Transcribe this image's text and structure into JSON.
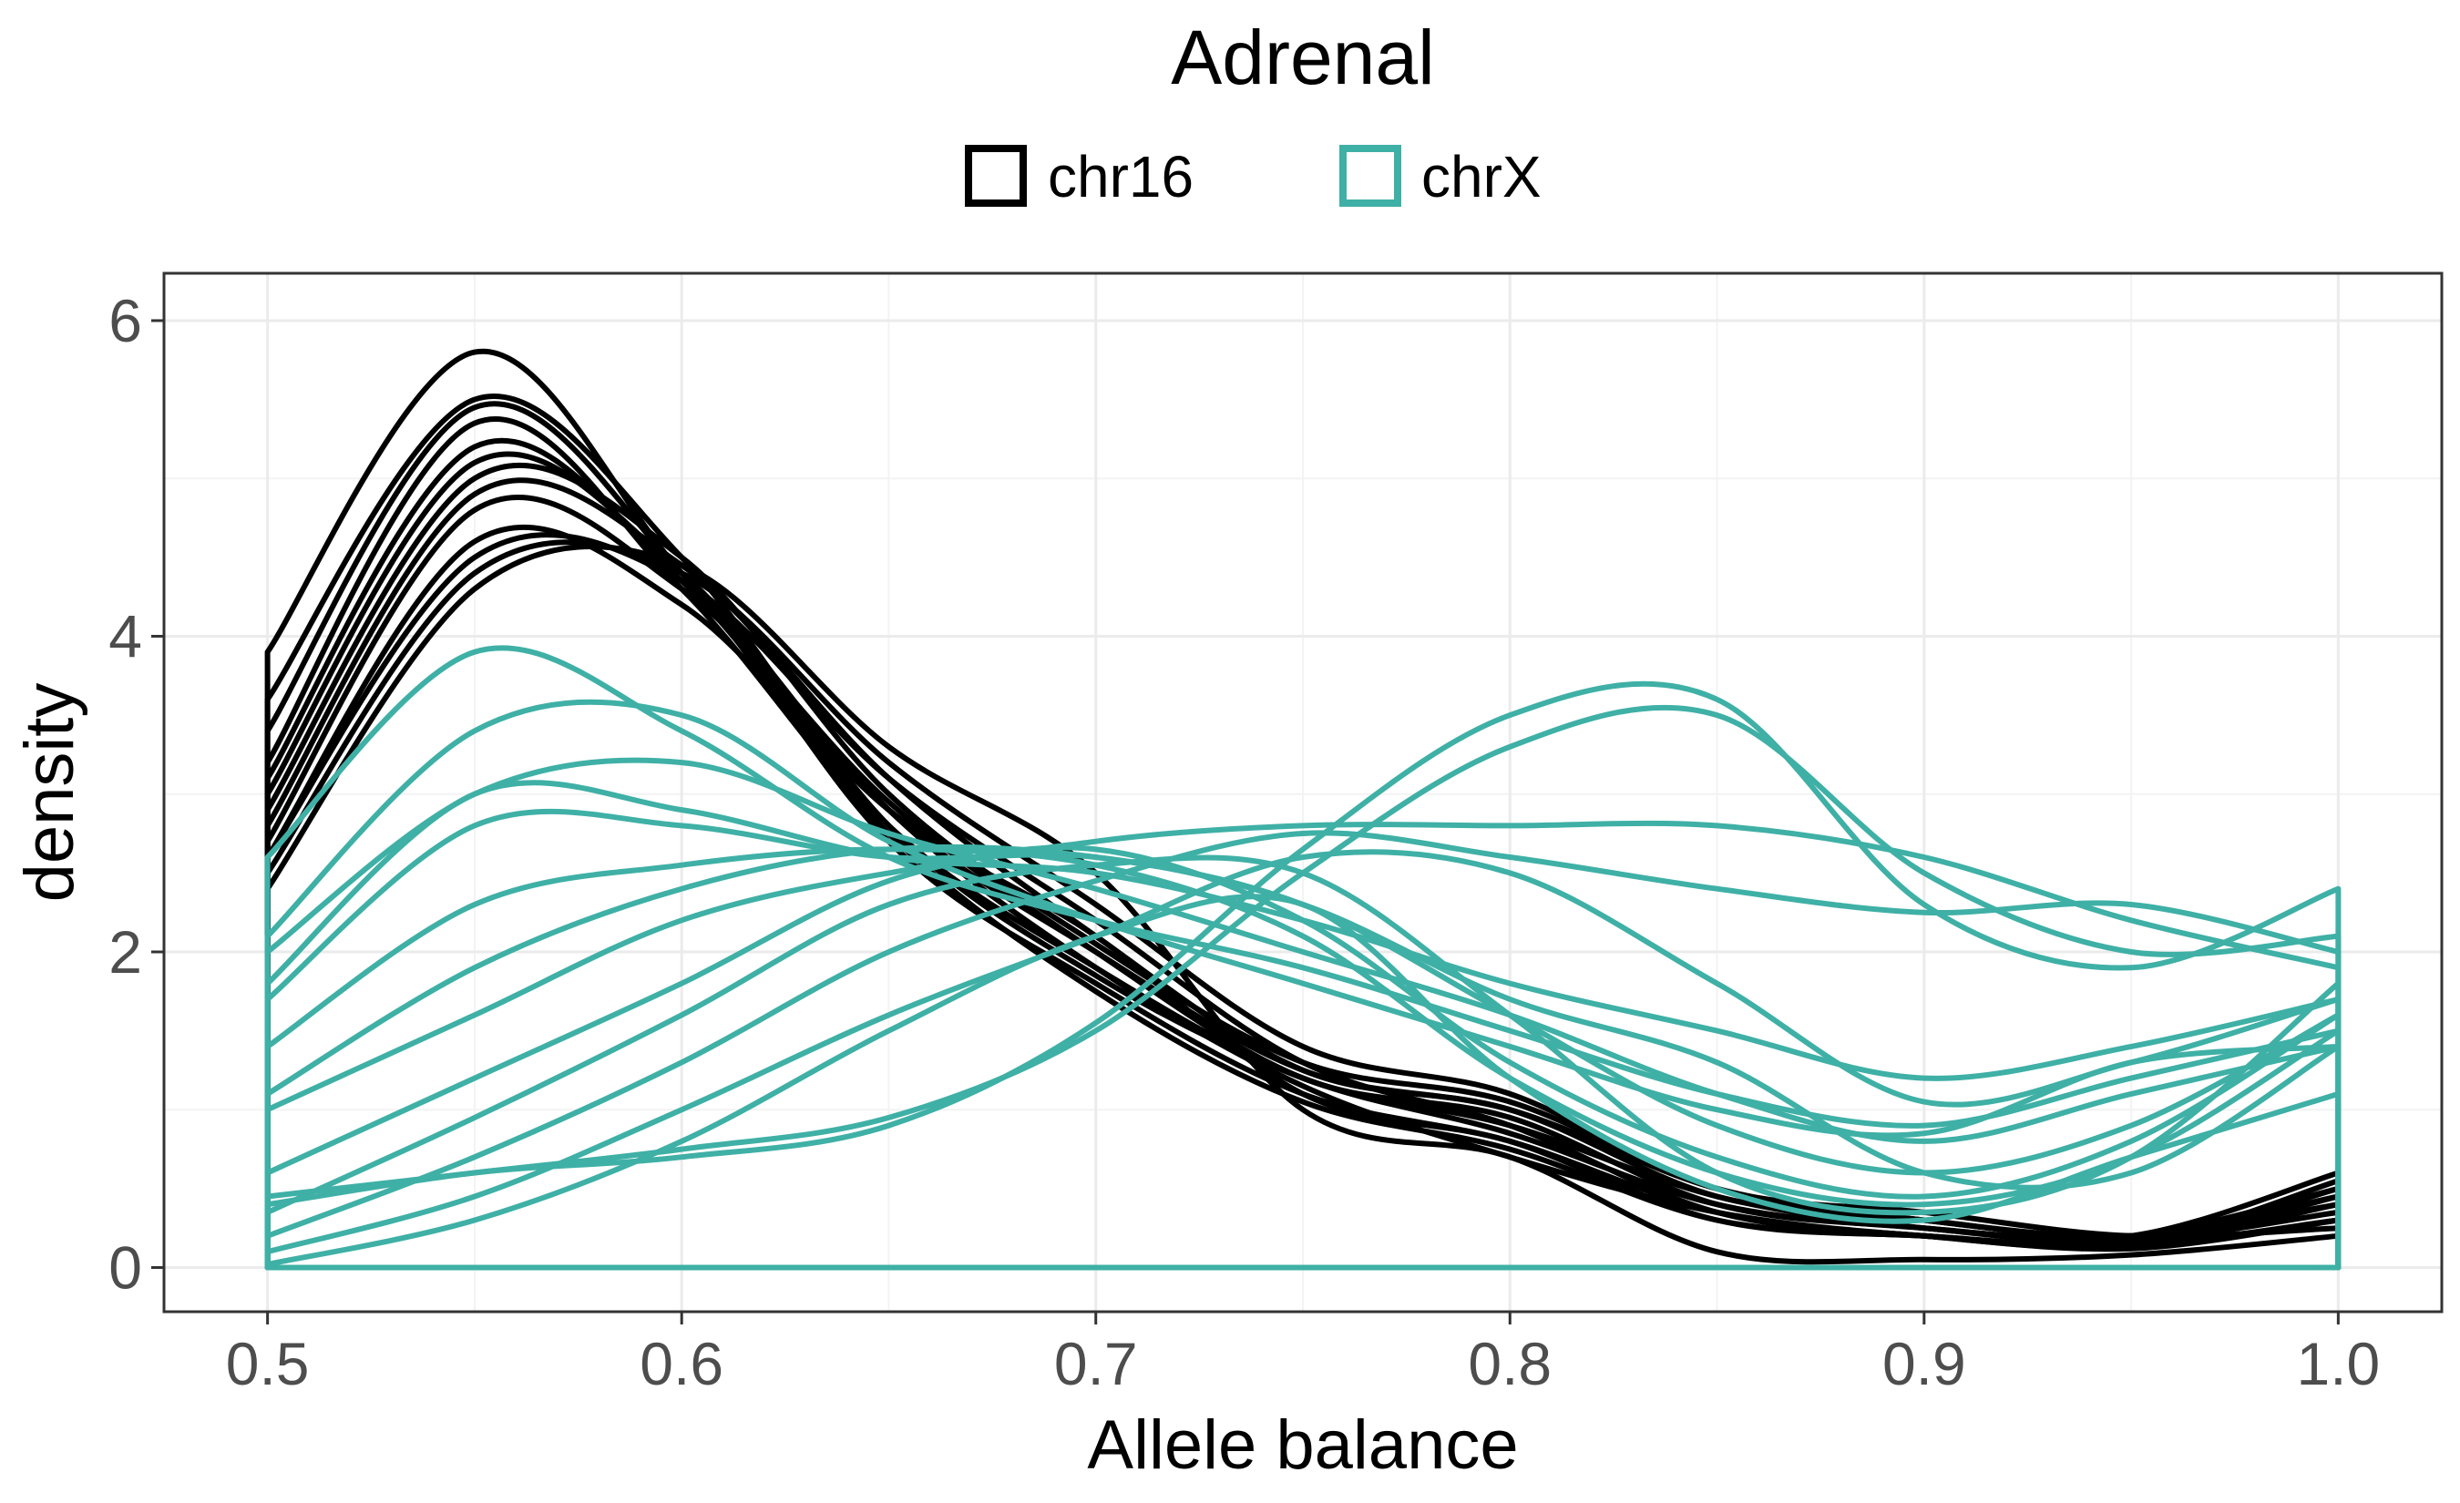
{
  "chart_data": {
    "type": "line",
    "title": "Adrenal",
    "xlabel": "Allele balance",
    "ylabel": "density",
    "xlim": [
      0.475,
      1.025
    ],
    "ylim": [
      -0.28,
      6.3
    ],
    "xticks": [
      0.5,
      0.6,
      0.7,
      0.8,
      0.9,
      1.0
    ],
    "xtick_labels": [
      "0.5",
      "0.6",
      "0.7",
      "0.8",
      "0.9",
      "1.0"
    ],
    "yticks": [
      0,
      2,
      4,
      6
    ],
    "ytick_labels": [
      "0",
      "2",
      "4",
      "6"
    ],
    "grid": true,
    "legend_position": "top",
    "legend": [
      {
        "label": "chr16",
        "color": "#000000"
      },
      {
        "label": "chrX",
        "color": "#3fb0a6"
      }
    ],
    "x": [
      0.5,
      0.55,
      0.6,
      0.65,
      0.7,
      0.75,
      0.8,
      0.85,
      0.9,
      0.95,
      1.0
    ],
    "series": [
      {
        "group": "chr16",
        "values": [
          3.9,
          5.8,
          4.4,
          2.9,
          1.9,
          1.15,
          0.7,
          0.35,
          0.2,
          0.15,
          0.55
        ]
      },
      {
        "group": "chr16",
        "values": [
          3.6,
          5.5,
          4.5,
          2.8,
          1.85,
          1.2,
          0.85,
          0.4,
          0.25,
          0.2,
          0.6
        ]
      },
      {
        "group": "chr16",
        "values": [
          3.4,
          5.45,
          4.4,
          2.7,
          1.8,
          1.1,
          0.8,
          0.35,
          0.2,
          0.15,
          0.5
        ]
      },
      {
        "group": "chr16",
        "values": [
          3.2,
          5.35,
          4.3,
          2.75,
          1.75,
          1.05,
          0.75,
          0.3,
          0.2,
          0.15,
          0.45
        ]
      },
      {
        "group": "chr16",
        "values": [
          3.1,
          5.2,
          4.35,
          2.8,
          1.9,
          1.2,
          0.9,
          0.45,
          0.25,
          0.2,
          0.5
        ]
      },
      {
        "group": "chr16",
        "values": [
          3.0,
          5.1,
          4.4,
          2.9,
          2.0,
          1.25,
          1.0,
          0.5,
          0.3,
          0.2,
          0.45
        ]
      },
      {
        "group": "chr16",
        "values": [
          2.9,
          5.0,
          4.5,
          3.0,
          2.05,
          1.3,
          1.05,
          0.5,
          0.3,
          0.2,
          0.4
        ]
      },
      {
        "group": "chr16",
        "values": [
          2.8,
          4.9,
          4.45,
          3.1,
          2.1,
          1.25,
          1.0,
          0.45,
          0.3,
          0.18,
          0.35
        ]
      },
      {
        "group": "chr16",
        "values": [
          2.7,
          4.8,
          4.3,
          2.95,
          2.0,
          1.2,
          0.95,
          0.4,
          0.25,
          0.15,
          0.3
        ]
      },
      {
        "group": "chr16",
        "values": [
          2.6,
          4.6,
          4.2,
          2.9,
          2.1,
          1.1,
          0.8,
          0.3,
          0.2,
          0.15,
          0.4
        ]
      },
      {
        "group": "chr16",
        "values": [
          2.6,
          4.5,
          4.35,
          3.1,
          2.2,
          1.3,
          0.9,
          0.35,
          0.2,
          0.12,
          0.3
        ]
      },
      {
        "group": "chr16",
        "values": [
          2.5,
          4.4,
          4.4,
          3.2,
          2.3,
          1.4,
          1.1,
          0.5,
          0.35,
          0.2,
          0.25
        ]
      },
      {
        "group": "chr16",
        "values": [
          2.4,
          4.3,
          4.45,
          3.3,
          2.5,
          1.0,
          0.7,
          0.1,
          0.05,
          0.08,
          0.2
        ]
      },
      {
        "group": "chrX",
        "values": [
          2.6,
          3.9,
          3.4,
          2.6,
          2.2,
          1.9,
          1.5,
          1.1,
          0.9,
          1.2,
          1.5
        ]
      },
      {
        "group": "chrX",
        "values": [
          2.1,
          3.4,
          3.5,
          2.7,
          2.2,
          1.8,
          1.4,
          1.0,
          0.85,
          1.3,
          1.4
        ]
      },
      {
        "group": "chrX",
        "values": [
          2.0,
          3.0,
          3.2,
          2.75,
          2.4,
          2.0,
          1.6,
          1.1,
          0.8,
          1.1,
          1.4
        ]
      },
      {
        "group": "chrX",
        "values": [
          1.8,
          3.0,
          2.9,
          2.6,
          2.5,
          2.2,
          1.8,
          1.5,
          1.2,
          1.4,
          1.7
        ]
      },
      {
        "group": "chrX",
        "values": [
          1.7,
          2.8,
          2.8,
          2.6,
          2.6,
          2.3,
          1.7,
          1.3,
          0.6,
          0.6,
          1.4
        ]
      },
      {
        "group": "chrX",
        "values": [
          1.4,
          2.3,
          2.55,
          2.65,
          2.55,
          2.1,
          1.2,
          0.6,
          0.4,
          0.7,
          1.5
        ]
      },
      {
        "group": "chrX",
        "values": [
          1.1,
          1.9,
          2.4,
          2.65,
          2.6,
          2.3,
          1.6,
          0.9,
          0.6,
          0.9,
          1.6
        ]
      },
      {
        "group": "chrX",
        "values": [
          1.0,
          1.6,
          2.2,
          2.5,
          2.65,
          2.2,
          1.3,
          0.7,
          0.45,
          0.8,
          1.6
        ]
      },
      {
        "group": "chrX",
        "values": [
          0.6,
          1.2,
          1.8,
          2.45,
          2.7,
          2.8,
          2.8,
          2.8,
          2.6,
          2.2,
          1.9
        ]
      },
      {
        "group": "chrX",
        "values": [
          0.45,
          0.6,
          0.75,
          0.95,
          1.5,
          2.5,
          3.3,
          3.5,
          2.5,
          2.0,
          2.1
        ]
      },
      {
        "group": "chrX",
        "values": [
          0.4,
          0.6,
          0.7,
          0.9,
          1.55,
          2.65,
          3.5,
          3.6,
          2.3,
          1.9,
          2.4
        ]
      },
      {
        "group": "chrX",
        "values": [
          0.35,
          0.95,
          1.6,
          2.3,
          2.55,
          2.5,
          1.6,
          0.6,
          0.35,
          0.7,
          1.8
        ]
      },
      {
        "group": "chrX",
        "values": [
          0.2,
          0.7,
          1.3,
          2.0,
          2.45,
          2.75,
          2.6,
          2.4,
          2.25,
          2.3,
          2.0
        ]
      },
      {
        "group": "chrX",
        "values": [
          0.1,
          0.45,
          1.0,
          1.6,
          2.1,
          2.6,
          2.5,
          1.8,
          1.05,
          1.3,
          1.7
        ]
      },
      {
        "group": "chrX",
        "values": [
          0.02,
          0.3,
          0.8,
          1.5,
          2.1,
          2.3,
          1.2,
          0.5,
          0.3,
          0.7,
          1.1
        ]
      }
    ]
  }
}
